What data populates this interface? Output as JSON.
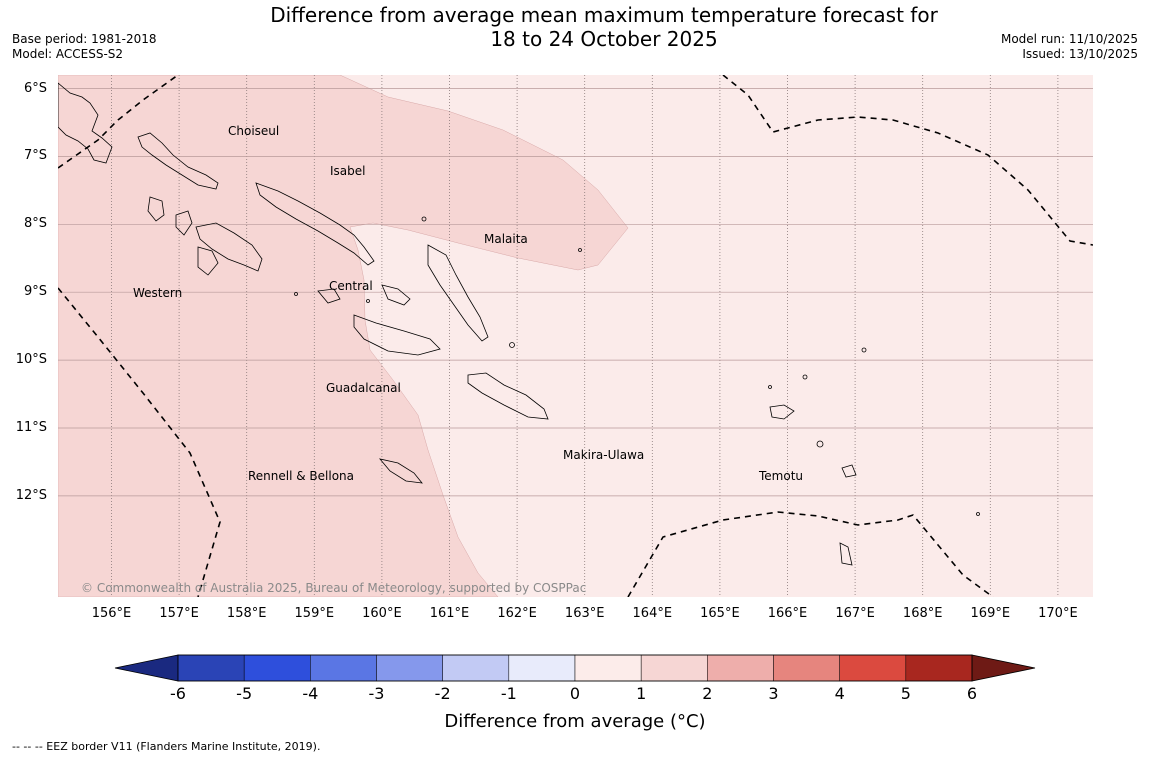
{
  "title": {
    "line1": "Difference from average mean maximum temperature forecast for",
    "line2": "18 to 24 October 2025"
  },
  "meta": {
    "base_period": "Base period: 1981-2018",
    "model": "Model: ACCESS-S2",
    "model_run": "Model run: 11/10/2025",
    "issued": "Issued: 13/10/2025"
  },
  "map": {
    "latitude_labels": [
      "6°S",
      "7°S",
      "8°S",
      "9°S",
      "10°S",
      "11°S",
      "12°S"
    ],
    "longitude_labels": [
      "156°E",
      "157°E",
      "158°E",
      "159°E",
      "160°E",
      "161°E",
      "162°E",
      "163°E",
      "164°E",
      "165°E",
      "166°E",
      "167°E",
      "168°E",
      "169°E",
      "170°E"
    ],
    "region_labels": [
      "Choiseul",
      "Isabel",
      "Malaita",
      "Western",
      "Central",
      "Guadalcanal",
      "Makira-Ulawa",
      "Rennell & Bellona",
      "Temotu"
    ],
    "copyright": "© Commonwealth of Australia 2025, Bureau of Meteorology, supported by COSPPac",
    "fill_colors": {
      "anomaly_1_to_2": "#f6d6d4",
      "anomaly_0_to_1": "#fbebea"
    }
  },
  "colorbar": {
    "ticks": [
      "-6",
      "-5",
      "-4",
      "-3",
      "-2",
      "-1",
      "0",
      "1",
      "2",
      "3",
      "4",
      "5",
      "6"
    ],
    "colors": [
      "#1a2980",
      "#2a44b6",
      "#2e4fdc",
      "#5a76e4",
      "#8598ec",
      "#c2caf4",
      "#e8ebfb",
      "#fcecea",
      "#f6d6d4",
      "#eeaeab",
      "#e6857e",
      "#db4a3f",
      "#a8271f",
      "#6e1a15"
    ],
    "label": "Difference from average (°C)"
  },
  "footer": "--  --  -- EEZ border V11 (Flanders Marine Institute, 2019)."
}
